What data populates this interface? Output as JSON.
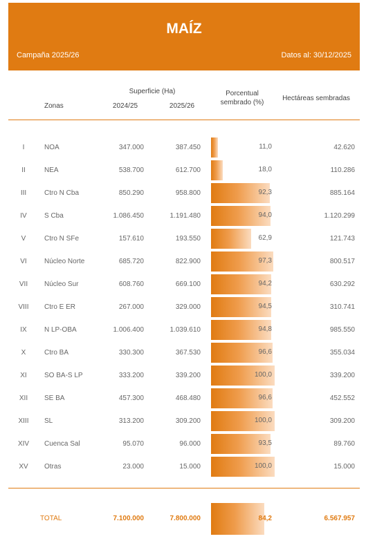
{
  "header": {
    "title": "MAÍZ",
    "campaign": "Campaña 2025/26",
    "data_date": "Datos al: 30/12/2025",
    "accent_color": "#e07b12"
  },
  "columns": {
    "zones": "Zonas",
    "surface": "Superficie (Ha)",
    "year1": "2024/25",
    "year2": "2025/26",
    "pct_line1": "Porcentual",
    "pct_line2": "sembrado (%)",
    "hectares": "Hectáreas sembradas"
  },
  "rows": [
    {
      "roman": "I",
      "zone": "NOA",
      "v1": "347.000",
      "v2": "387.450",
      "pct": "11,0",
      "pct_value": 11.0,
      "ha": "42.620"
    },
    {
      "roman": "II",
      "zone": "NEA",
      "v1": "538.700",
      "v2": "612.700",
      "pct": "18,0",
      "pct_value": 18.0,
      "ha": "110.286"
    },
    {
      "roman": "III",
      "zone": "Ctro N Cba",
      "v1": "850.290",
      "v2": "958.800",
      "pct": "92,3",
      "pct_value": 92.3,
      "ha": "885.164"
    },
    {
      "roman": "IV",
      "zone": "S Cba",
      "v1": "1.086.450",
      "v2": "1.191.480",
      "pct": "94,0",
      "pct_value": 94.0,
      "ha": "1.120.299"
    },
    {
      "roman": "V",
      "zone": "Ctro N SFe",
      "v1": "157.610",
      "v2": "193.550",
      "pct": "62,9",
      "pct_value": 62.9,
      "ha": "121.743"
    },
    {
      "roman": "VI",
      "zone": "Núcleo Norte",
      "v1": "685.720",
      "v2": "822.900",
      "pct": "97,3",
      "pct_value": 97.3,
      "ha": "800.517"
    },
    {
      "roman": "VII",
      "zone": "Núcleo Sur",
      "v1": "608.760",
      "v2": "669.100",
      "pct": "94,2",
      "pct_value": 94.2,
      "ha": "630.292"
    },
    {
      "roman": "VIII",
      "zone": "Ctro E ER",
      "v1": "267.000",
      "v2": "329.000",
      "pct": "94,5",
      "pct_value": 94.5,
      "ha": "310.741"
    },
    {
      "roman": "IX",
      "zone": "N LP-OBA",
      "v1": "1.006.400",
      "v2": "1.039.610",
      "pct": "94,8",
      "pct_value": 94.8,
      "ha": "985.550"
    },
    {
      "roman": "X",
      "zone": "Ctro BA",
      "v1": "330.300",
      "v2": "367.530",
      "pct": "96,6",
      "pct_value": 96.6,
      "ha": "355.034"
    },
    {
      "roman": "XI",
      "zone": "SO BA-S LP",
      "v1": "333.200",
      "v2": "339.200",
      "pct": "100,0",
      "pct_value": 100.0,
      "ha": "339.200"
    },
    {
      "roman": "XII",
      "zone": "SE BA",
      "v1": "457.300",
      "v2": "468.480",
      "pct": "96,6",
      "pct_value": 96.6,
      "ha": "452.552"
    },
    {
      "roman": "XIII",
      "zone": "SL",
      "v1": "313.200",
      "v2": "309.200",
      "pct": "100,0",
      "pct_value": 100.0,
      "ha": "309.200"
    },
    {
      "roman": "XIV",
      "zone": "Cuenca Sal",
      "v1": "95.070",
      "v2": "96.000",
      "pct": "93,5",
      "pct_value": 93.5,
      "ha": "89.760"
    },
    {
      "roman": "XV",
      "zone": "Otras",
      "v1": "23.000",
      "v2": "15.000",
      "pct": "100,0",
      "pct_value": 100.0,
      "ha": "15.000"
    }
  ],
  "total": {
    "label": "TOTAL",
    "v1": "7.100.000",
    "v2": "7.800.000",
    "pct": "84,2",
    "pct_value": 84.2,
    "ha": "6.567.957"
  }
}
